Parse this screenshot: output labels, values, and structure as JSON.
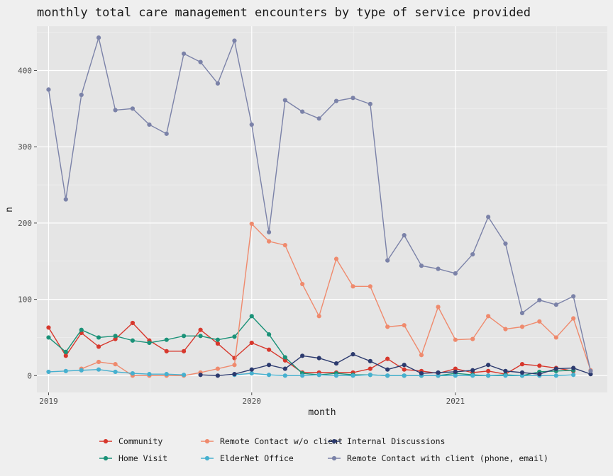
{
  "chart_data": {
    "type": "line",
    "title": "monthly total care management encounters by type of service provided",
    "xlabel": "month",
    "ylabel": "n",
    "ylim": [
      -22,
      458
    ],
    "yticks": [
      0,
      100,
      200,
      300,
      400
    ],
    "xlim": [
      "2018-12-11",
      "2021-10-01"
    ],
    "xticks": [
      "2019-01-01",
      "2020-01-01",
      "2021-01-01"
    ],
    "xtick_labels": [
      "2019",
      "2020",
      "2021"
    ],
    "x": [
      "2019-01-01",
      "2019-02-01",
      "2019-03-01",
      "2019-04-01",
      "2019-05-01",
      "2019-06-01",
      "2019-07-01",
      "2019-08-01",
      "2019-09-01",
      "2019-10-01",
      "2019-11-01",
      "2019-12-01",
      "2020-01-01",
      "2020-02-01",
      "2020-03-01",
      "2020-04-01",
      "2020-05-01",
      "2020-06-01",
      "2020-07-01",
      "2020-08-01",
      "2020-09-01",
      "2020-10-01",
      "2020-11-01",
      "2020-12-01",
      "2021-01-01",
      "2021-02-01",
      "2021-03-01",
      "2021-04-01",
      "2021-05-01",
      "2021-06-01",
      "2021-07-01",
      "2021-08-01",
      "2021-09-01"
    ],
    "grid": true,
    "legend_position": "bottom",
    "background": "#e5e5e5",
    "series": [
      {
        "name": "Community",
        "color": "#d7382d",
        "values": [
          63,
          26,
          56,
          38,
          48,
          69,
          46,
          32,
          32,
          60,
          42,
          23,
          43,
          34,
          20,
          4,
          4,
          4,
          4,
          9,
          22,
          8,
          6,
          3,
          9,
          4,
          6,
          2,
          15,
          13,
          10,
          6,
          null
        ]
      },
      {
        "name": "Home Visit",
        "color": "#1b9278",
        "values": [
          50,
          31,
          60,
          50,
          52,
          46,
          43,
          47,
          52,
          52,
          47,
          51,
          78,
          54,
          24,
          3,
          1,
          3,
          1,
          1,
          0,
          0,
          0,
          0,
          3,
          1,
          0,
          1,
          0,
          5,
          6,
          7,
          null
        ]
      },
      {
        "name": "Remote Contact w/o client",
        "color": "#ef8a6d",
        "values": [
          null,
          null,
          9,
          18,
          15,
          0,
          0,
          0,
          0,
          4,
          9,
          14,
          199,
          176,
          171,
          120,
          78,
          153,
          117,
          117,
          64,
          66,
          27,
          90,
          47,
          48,
          78,
          61,
          64,
          71,
          50,
          75,
          7
        ]
      },
      {
        "name": "ElderNet Office",
        "color": "#46b0cf",
        "values": [
          5,
          6,
          7,
          8,
          5,
          3,
          2,
          2,
          1,
          null,
          null,
          1,
          3,
          1,
          0,
          0,
          1,
          0,
          0,
          1,
          0,
          0,
          0,
          0,
          0,
          0,
          0,
          0,
          0,
          0,
          0,
          1,
          null
        ]
      },
      {
        "name": "Internal Discussions",
        "color": "#2c3a6e",
        "values": [
          null,
          null,
          null,
          null,
          null,
          null,
          null,
          null,
          null,
          1,
          0,
          2,
          8,
          14,
          9,
          26,
          23,
          16,
          28,
          19,
          8,
          14,
          3,
          4,
          5,
          7,
          14,
          6,
          4,
          2,
          9,
          10,
          2
        ]
      },
      {
        "name": "Remote Contact with client (phone, email)",
        "color": "#7b82a8",
        "values": [
          375,
          231,
          368,
          443,
          348,
          350,
          329,
          317,
          422,
          411,
          383,
          439,
          329,
          188,
          361,
          346,
          337,
          360,
          364,
          356,
          151,
          184,
          144,
          140,
          134,
          159,
          208,
          173,
          82,
          99,
          93,
          104,
          6
        ]
      }
    ]
  }
}
